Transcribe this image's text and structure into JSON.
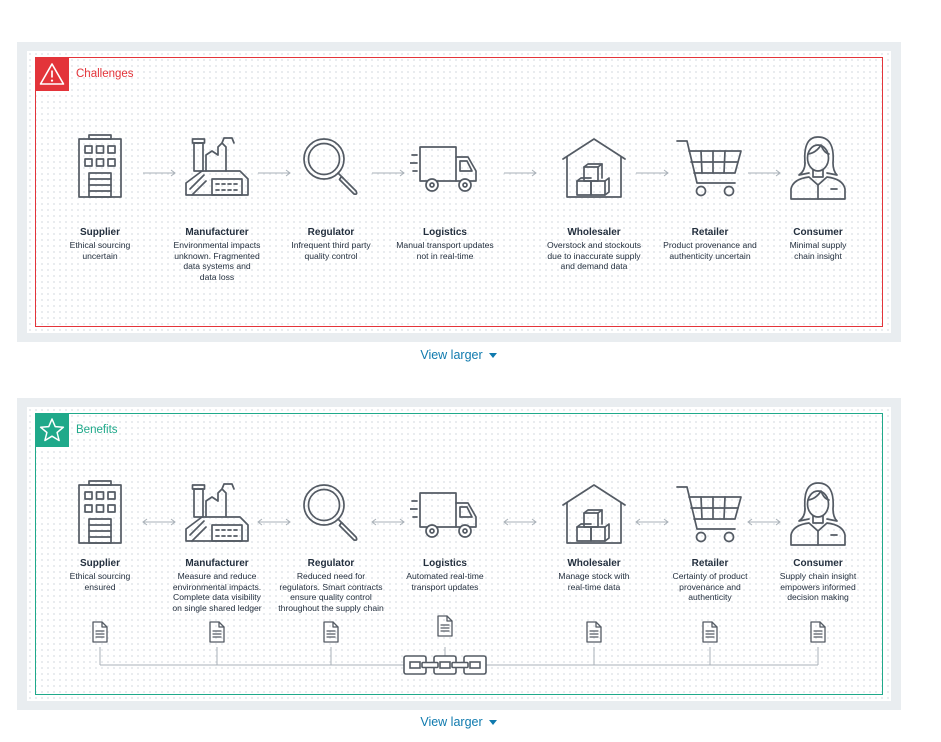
{
  "challenges": {
    "label": "Challenges",
    "accent_color": "#e3343a",
    "tag_icon": "warning-triangle-icon",
    "stages": [
      {
        "icon": "building-icon",
        "title": "Supplier",
        "desc": "Ethical sourcing\nuncertain"
      },
      {
        "icon": "factory-icon",
        "title": "Manufacturer",
        "desc": "Environmental impacts\nunknown. Fragmented\ndata systems and\ndata loss"
      },
      {
        "icon": "magnifier-icon",
        "title": "Regulator",
        "desc": "Infrequent third party\nquality control"
      },
      {
        "icon": "truck-icon",
        "title": "Logistics",
        "desc": "Manual transport updates\nnot in real-time"
      },
      {
        "icon": "warehouse-icon",
        "title": "Wholesaler",
        "desc": "Overstock and stockouts\ndue to inaccurate supply\nand demand data"
      },
      {
        "icon": "cart-icon",
        "title": "Retailer",
        "desc": "Product provenance and\nauthenticity uncertain"
      },
      {
        "icon": "person-icon",
        "title": "Consumer",
        "desc": "Minimal supply\nchain insight"
      }
    ]
  },
  "benefits": {
    "label": "Benefits",
    "accent_color": "#1fa98a",
    "tag_icon": "star-icon",
    "stages": [
      {
        "icon": "building-icon",
        "title": "Supplier",
        "desc": "Ethical sourcing\nensured"
      },
      {
        "icon": "factory-icon",
        "title": "Manufacturer",
        "desc": "Measure and reduce\nenvironmental impacts.\nComplete data visibility\non single shared ledger"
      },
      {
        "icon": "magnifier-icon",
        "title": "Regulator",
        "desc": "Reduced need for\nregulators. Smart contracts\nensure quality control\nthroughout the supply chain"
      },
      {
        "icon": "truck-icon",
        "title": "Logistics",
        "desc": "Automated real-time\ntransport updates"
      },
      {
        "icon": "warehouse-icon",
        "title": "Wholesaler",
        "desc": "Manage stock with\nreal-time data"
      },
      {
        "icon": "cart-icon",
        "title": "Retailer",
        "desc": "Certainty of product\nprovenance and\nauthenticity"
      },
      {
        "icon": "person-icon",
        "title": "Consumer",
        "desc": "Supply chain insight\nempowers informed\ndecision making"
      }
    ],
    "ledger_icons": [
      "document-icon",
      "chain-icon"
    ]
  },
  "view_larger_label": "View larger",
  "link_color": "#0f7aae"
}
